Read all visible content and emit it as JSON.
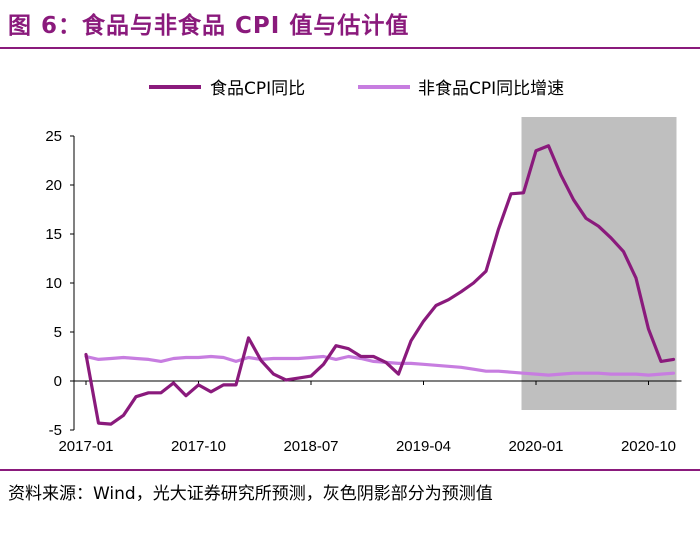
{
  "figure": {
    "title": "图 6：食品与非食品 CPI 值与估计值",
    "source": "资料来源：Wind，光大证券研究所预测，灰色阴影部分为预测值"
  },
  "colors": {
    "title": "#8a1a7c",
    "food": "#8a1a7c",
    "nonfood": "#c77de0",
    "shade": "#bfbfbf"
  },
  "chart_data": {
    "type": "line",
    "title": "食品与非食品 CPI 值与估计值",
    "xlabel": "",
    "ylabel": "",
    "ylim": [
      -5,
      25
    ],
    "yticks": [
      -5,
      0,
      5,
      10,
      15,
      20,
      25
    ],
    "x_tick_labels": [
      "2017-01",
      "2017-10",
      "2018-07",
      "2019-04",
      "2020-01",
      "2020-10"
    ],
    "x_tick_index": [
      0,
      9,
      18,
      27,
      36,
      45
    ],
    "legend": [
      "食品CPI同比",
      "非食品CPI同比增速"
    ],
    "legend_position": "top",
    "shaded_region": {
      "from_index": 35,
      "to_index": 47,
      "note": "预测"
    },
    "series": [
      {
        "name": "食品CPI同比",
        "values": [
          2.7,
          -4.3,
          -4.4,
          -3.5,
          -1.6,
          -1.2,
          -1.2,
          -0.2,
          -1.5,
          -0.4,
          -1.1,
          -0.4,
          -0.4,
          4.4,
          2.1,
          0.7,
          0.1,
          0.3,
          0.5,
          1.7,
          3.6,
          3.3,
          2.5,
          2.5,
          1.9,
          0.7,
          4.1,
          6.1,
          7.7,
          8.3,
          9.1,
          10.0,
          11.2,
          15.5,
          19.1,
          19.2,
          23.5,
          24.0,
          21.0,
          18.5,
          16.6,
          15.8,
          14.6,
          13.2,
          10.5,
          5.3,
          2.0,
          2.2
        ]
      },
      {
        "name": "非食品CPI同比增速",
        "values": [
          2.5,
          2.2,
          2.3,
          2.4,
          2.3,
          2.2,
          2.0,
          2.3,
          2.4,
          2.4,
          2.5,
          2.4,
          2.0,
          2.4,
          2.2,
          2.3,
          2.3,
          2.3,
          2.4,
          2.5,
          2.2,
          2.5,
          2.3,
          2.0,
          1.9,
          1.8,
          1.8,
          1.7,
          1.6,
          1.5,
          1.4,
          1.2,
          1.0,
          1.0,
          0.9,
          0.8,
          0.7,
          0.6,
          0.7,
          0.8,
          0.8,
          0.8,
          0.7,
          0.7,
          0.7,
          0.6,
          0.7,
          0.8
        ]
      }
    ]
  }
}
